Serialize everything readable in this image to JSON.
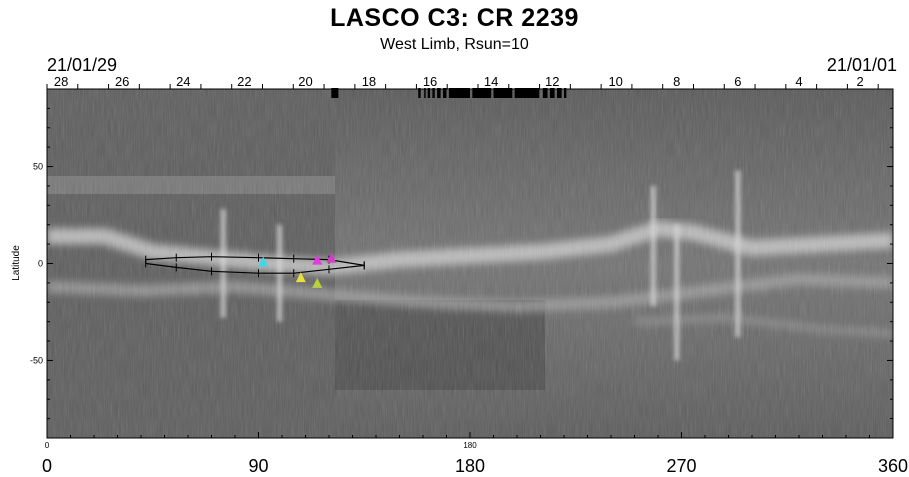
{
  "chart_data": {
    "type": "heatmap",
    "title": "LASCO C3: CR 2239",
    "subtitle": "West Limb, Rsun=10",
    "start_date": "21/01/29",
    "end_date": "21/01/01",
    "ylabel": "Latitude",
    "xlim": [
      0,
      360
    ],
    "ylim": [
      -90,
      90
    ],
    "x_ticks": [
      0,
      90,
      180,
      270,
      360
    ],
    "x_tick_labels": [
      "0",
      "90",
      "180",
      "270",
      "360"
    ],
    "x_minor_label_left": "0",
    "x_minor_label_mid": "180",
    "y_ticks": [
      50,
      0,
      -50
    ],
    "y_tick_labels": [
      "50",
      "0",
      "-50"
    ],
    "top_axis_labels": [
      {
        "day": "28",
        "x": 6
      },
      {
        "day": "26",
        "x": 32
      },
      {
        "day": "24",
        "x": 58
      },
      {
        "day": "22",
        "x": 84
      },
      {
        "day": "20",
        "x": 110
      },
      {
        "day": "18",
        "x": 137
      },
      {
        "day": "16",
        "x": 163
      },
      {
        "day": "14",
        "x": 189
      },
      {
        "day": "12",
        "x": 215
      },
      {
        "day": "10",
        "x": 242
      },
      {
        "day": "8",
        "x": 268
      },
      {
        "day": "6",
        "x": 294
      },
      {
        "day": "4",
        "x": 320
      },
      {
        "day": "2",
        "x": 346
      }
    ],
    "data_gaps": [
      [
        121,
        124
      ],
      [
        158,
        159
      ],
      [
        160.5,
        161
      ],
      [
        162,
        163
      ],
      [
        164,
        165
      ],
      [
        166,
        167.5
      ],
      [
        168.5,
        170
      ],
      [
        171,
        180
      ],
      [
        181,
        189
      ],
      [
        190,
        198
      ],
      [
        199,
        209.5
      ],
      [
        211,
        213
      ],
      [
        214,
        216
      ],
      [
        217,
        219
      ],
      [
        220,
        221
      ]
    ],
    "streamer_belt": {
      "upper": [
        [
          42,
          2
        ],
        [
          55,
          3
        ],
        [
          70,
          3.5
        ],
        [
          90,
          3
        ],
        [
          105,
          2.5
        ],
        [
          120,
          2
        ],
        [
          135,
          -1
        ]
      ],
      "lower": [
        [
          42,
          0
        ],
        [
          55,
          -2
        ],
        [
          70,
          -4
        ],
        [
          90,
          -5
        ],
        [
          105,
          -5
        ],
        [
          120,
          -3
        ],
        [
          135,
          -1
        ]
      ]
    },
    "markers": [
      {
        "label": "cyan triangle",
        "lon": 92,
        "lat": 1,
        "color": "#3fd6e8"
      },
      {
        "label": "magenta triangle",
        "lon": 115,
        "lat": 2,
        "color": "#e03ce0"
      },
      {
        "label": "magenta mark",
        "lon": 121,
        "lat": 3,
        "color": "#d23cc8"
      },
      {
        "label": "yellow triangle",
        "lon": 108,
        "lat": -7,
        "color": "#e8e040"
      },
      {
        "label": "green mark",
        "lon": 115,
        "lat": -10,
        "color": "#b8d040"
      }
    ],
    "colors": {
      "background": "#ffffff",
      "map_dark": "#3c3c3c",
      "map_mid": "#6a6a6a",
      "bright_band": "#c8c8c8",
      "gap_bar": "#000000"
    }
  }
}
